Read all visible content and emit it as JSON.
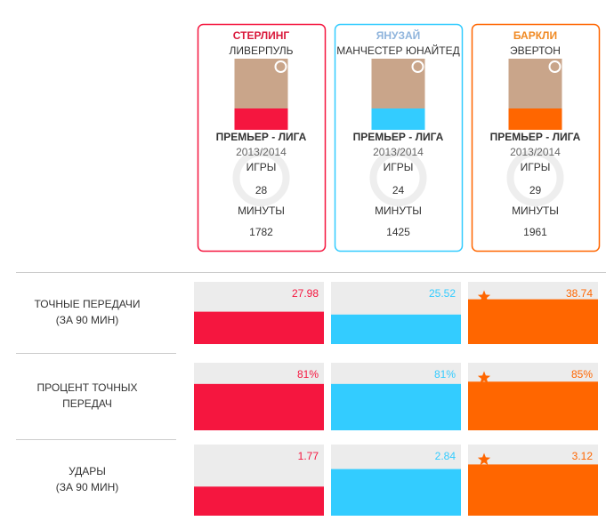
{
  "players": [
    {
      "name": "СТЕРЛИНГ",
      "club": "ЛИВЕРПУЛЬ",
      "color": "#f5163f",
      "name_color": "#d91a3c",
      "league": "ПРЕМЬЕР - ЛИГА",
      "season": "2013/2014",
      "games_label": "ИГРЫ",
      "games": 28,
      "minutes_label": "МИНУТЫ",
      "minutes": 1782
    },
    {
      "name": "ЯНУЗАЙ",
      "club": "МАНЧЕСТЕР ЮНАЙТЕД",
      "color": "#33ccff",
      "name_color": "#8fb4dc",
      "league": "ПРЕМЬЕР - ЛИГА",
      "season": "2013/2014",
      "games_label": "ИГРЫ",
      "games": 24,
      "minutes_label": "МИНУТЫ",
      "minutes": 1425
    },
    {
      "name": "БАРКЛИ",
      "club": "ЭВЕРТОН",
      "color": "#ff6600",
      "name_color": "#f08a24",
      "league": "ПРЕМЬЕР - ЛИГА",
      "season": "2013/2014",
      "games_label": "ИГРЫ",
      "games": 29,
      "minutes_label": "МИНУТЫ",
      "minutes": 1961
    }
  ],
  "metrics": [
    {
      "label": [
        "ТОЧНЫЕ ПЕРЕДАЧИ",
        "(ЗА 90 МИН)"
      ],
      "values": [
        27.98,
        25.52,
        38.74
      ]
    },
    {
      "label": [
        "ПРОЦЕНТ ТОЧНЫХ",
        "ПЕРЕДАЧ"
      ],
      "values": [
        81,
        81,
        85
      ],
      "value_labels": [
        "81%",
        "81%",
        "85%"
      ]
    },
    {
      "label": [
        "УДАРЫ",
        "(ЗА 90 МИН)"
      ],
      "values": [
        1.77,
        2.84,
        3.12
      ]
    }
  ]
}
